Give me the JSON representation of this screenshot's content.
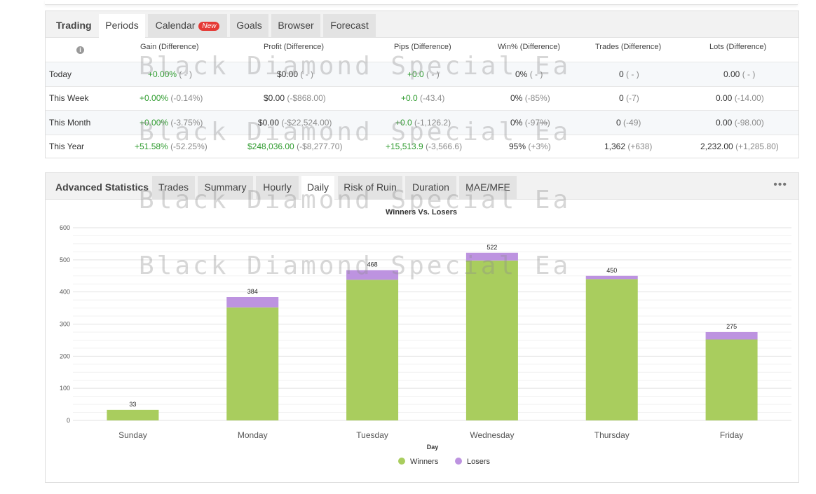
{
  "periods_panel": {
    "tabs": [
      {
        "label": "Trading",
        "active": false,
        "kind": "title"
      },
      {
        "label": "Periods",
        "active": true
      },
      {
        "label": "Calendar",
        "badge": "New"
      },
      {
        "label": "Goals"
      },
      {
        "label": "Browser"
      },
      {
        "label": "Forecast"
      }
    ],
    "headers": [
      "Gain (Difference)",
      "Profit (Difference)",
      "Pips (Difference)",
      "Win% (Difference)",
      "Trades (Difference)",
      "Lots (Difference)"
    ],
    "rows": [
      {
        "label": "Today",
        "gain": "+0.00%",
        "gain_diff": "( - )",
        "profit": "$0.00",
        "profit_diff": "( - )",
        "pips": "+0.0",
        "pips_diff": "( - )",
        "win": "0%",
        "win_diff": "( - )",
        "trades": "0",
        "trades_diff": "( - )",
        "lots": "0.00",
        "lots_diff": "( - )"
      },
      {
        "label": "This Week",
        "gain": "+0.00%",
        "gain_diff": "(-0.14%)",
        "profit": "$0.00",
        "profit_diff": "(-$868.00)",
        "pips": "+0.0",
        "pips_diff": "(-43.4)",
        "win": "0%",
        "win_diff": "(-85%)",
        "trades": "0",
        "trades_diff": "(-7)",
        "lots": "0.00",
        "lots_diff": "(-14.00)"
      },
      {
        "label": "This Month",
        "gain": "+0.00%",
        "gain_diff": "(-3.75%)",
        "profit": "$0.00",
        "profit_diff": "(-$22,524.00)",
        "pips": "+0.0",
        "pips_diff": "(-1,126.2)",
        "win": "0%",
        "win_diff": "(-97%)",
        "trades": "0",
        "trades_diff": "(-49)",
        "lots": "0.00",
        "lots_diff": "(-98.00)"
      },
      {
        "label": "This Year",
        "gain": "+51.58%",
        "gain_diff": "(-52.25%)",
        "profit": "$248,036.00",
        "profit_diff": "(-$8,277.70)",
        "pips": "+15,513.9",
        "pips_diff": "(-3,566.6)",
        "win": "95%",
        "win_diff": "(+3%)",
        "trades": "1,362",
        "trades_diff": "(+638)",
        "lots": "2,232.00",
        "lots_diff": "(+1,285.80)"
      }
    ]
  },
  "stats_panel": {
    "title": "Advanced Statistics",
    "tabs": [
      "Trades",
      "Summary",
      "Hourly",
      "Daily",
      "Risk of Ruin",
      "Duration",
      "MAE/MFE"
    ],
    "active_tab": "Daily",
    "menu_icon": "more-dots-icon"
  },
  "watermark_text": "Black Diamond Special Ea",
  "colors": {
    "winners": "#a9cd5e",
    "losers": "#bd93e0",
    "positive": "#2e9b2e",
    "negative_diff": "#8a8a8a"
  },
  "chart_data": {
    "type": "bar",
    "stacked": true,
    "title": "Winners Vs. Losers",
    "xlabel": "Day",
    "ylabel": "",
    "ylim": [
      0,
      600
    ],
    "yticks": [
      0,
      100,
      200,
      300,
      400,
      500,
      600
    ],
    "categories": [
      "Sunday",
      "Monday",
      "Tuesday",
      "Wednesday",
      "Thursday",
      "Friday"
    ],
    "series": [
      {
        "name": "Winners",
        "values": [
          33,
          352,
          438,
          498,
          440,
          252
        ]
      },
      {
        "name": "Losers",
        "values": [
          0,
          32,
          30,
          24,
          10,
          23
        ]
      }
    ],
    "totals": [
      "33",
      "384",
      "468",
      "522",
      "450",
      "275"
    ],
    "legend": "bottom-center",
    "grid": true
  }
}
